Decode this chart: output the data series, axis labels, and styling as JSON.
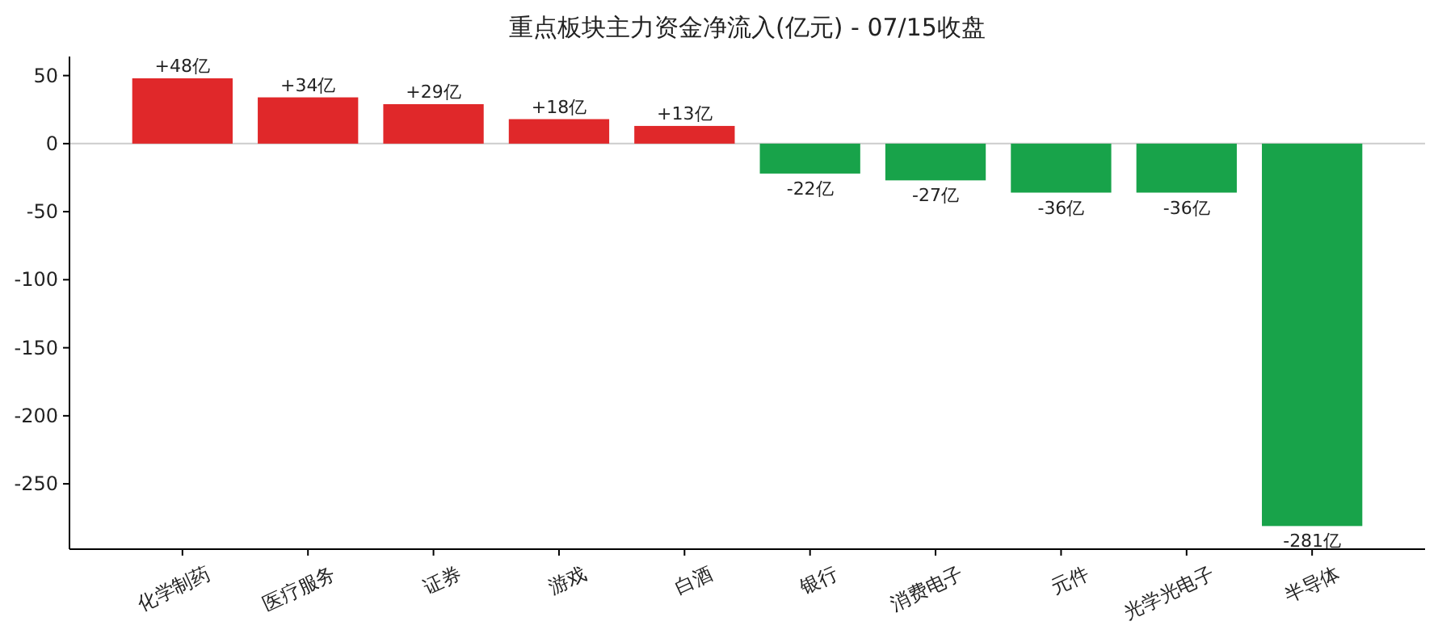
{
  "chart_data": {
    "type": "bar",
    "title": "重点板块主力资金净流入(亿元) - 07/15收盘",
    "categories": [
      "化学制药",
      "医疗服务",
      "证券",
      "游戏",
      "白酒",
      "银行",
      "消费电子",
      "元件",
      "光学光电子",
      "半导体"
    ],
    "values": [
      48,
      34,
      29,
      18,
      13,
      -22,
      -27,
      -36,
      -36,
      -281
    ],
    "colors": [
      "#e0282a",
      "#e0282a",
      "#e0282a",
      "#e0282a",
      "#e0282a",
      "#18a34a",
      "#18a34a",
      "#18a34a",
      "#18a34a",
      "#18a34a"
    ],
    "value_labels": [
      "+48亿",
      "+34亿",
      "+29亿",
      "+18亿",
      "+13亿",
      "-22亿",
      "-27亿",
      "-36亿",
      "-36亿",
      "-281亿"
    ],
    "ylim": [
      -298,
      64
    ],
    "yticks": [
      -250,
      -200,
      -150,
      -100,
      -50,
      0,
      50
    ],
    "ref_lines": [
      {
        "axis": "y",
        "value": 0,
        "color": "#cccccc"
      }
    ],
    "grid": false
  }
}
